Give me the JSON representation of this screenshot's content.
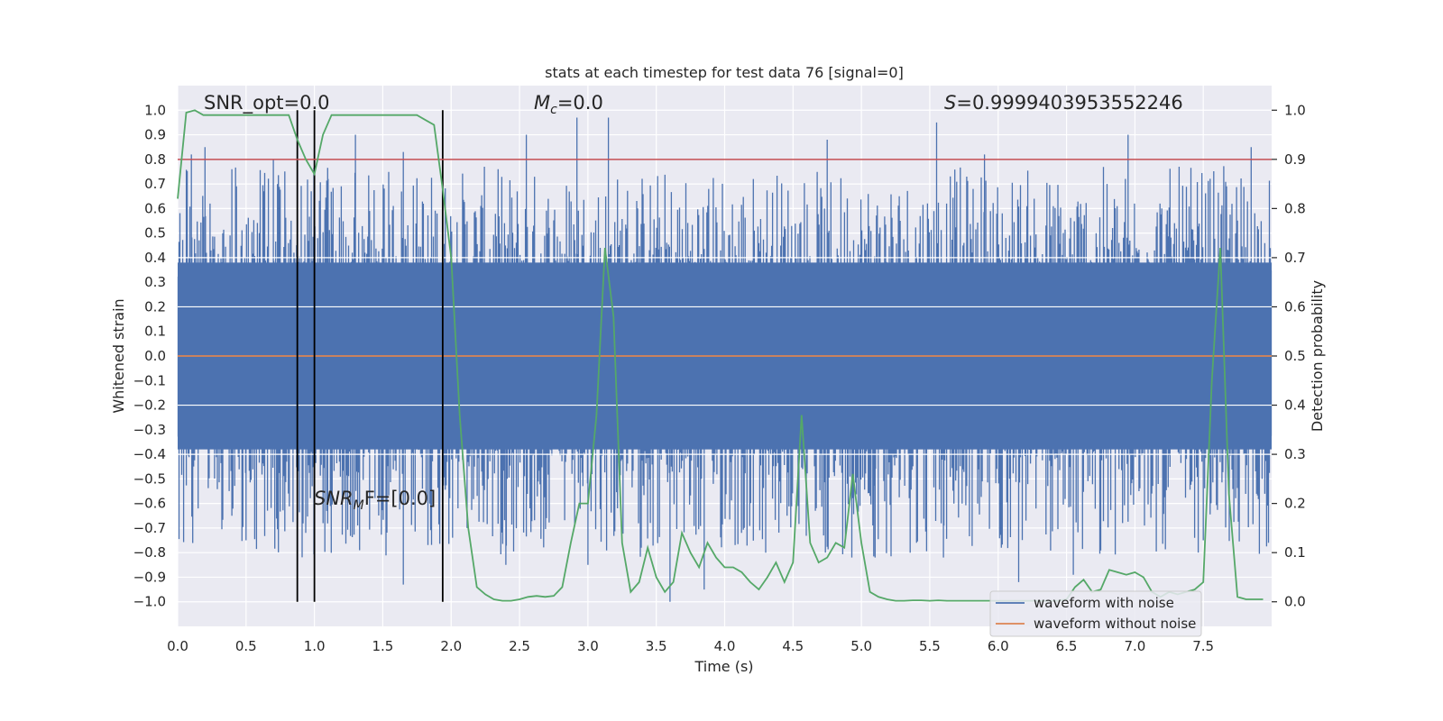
{
  "chart_data": {
    "type": "line",
    "title": "stats at each timestep for test data 76 [signal=0]",
    "xlabel": "Time (s)",
    "ylabel": "Whitened strain",
    "y2label": "Detection probability",
    "xlim": [
      0.0,
      8.0
    ],
    "ylim": [
      -1.1,
      1.1
    ],
    "y2lim": [
      -0.05,
      1.05
    ],
    "xticks": [
      "0.0",
      "0.5",
      "1.0",
      "1.5",
      "2.0",
      "2.5",
      "3.0",
      "3.5",
      "4.0",
      "4.5",
      "5.0",
      "5.5",
      "6.0",
      "6.5",
      "7.0",
      "7.5"
    ],
    "yticks": [
      "1.0",
      "0.9",
      "0.8",
      "0.7",
      "0.6",
      "0.5",
      "0.4",
      "0.3",
      "0.2",
      "0.1",
      "0.0",
      "−0.1",
      "−0.2",
      "−0.3",
      "−0.4",
      "−0.5",
      "−0.6",
      "−0.7",
      "−0.8",
      "−0.9",
      "−1.0"
    ],
    "y2ticks": [
      "1.0",
      "0.9",
      "0.8",
      "0.7",
      "0.6",
      "0.5",
      "0.4",
      "0.3",
      "0.2",
      "0.1",
      "0.0"
    ],
    "grid": true,
    "legend_position": "lower-right",
    "annotations": {
      "snr_opt": "SNR_opt=0.0",
      "mc_symbol": "M",
      "mc_sub": "c",
      "mc_value": "=0.0",
      "s_symbol": "S",
      "s_value": "=0.9999403953552246",
      "snr_mf_symbol": "SNR",
      "snr_mf_sub": "M",
      "snr_mf_value": "F=[0.0]"
    },
    "threshold_line": {
      "y2": 0.9,
      "color": "#c44e52"
    },
    "vertical_lines_x": [
      0.875,
      1.0,
      1.938
    ],
    "series": [
      {
        "name": "waveform with noise",
        "color": "#4c72b0",
        "axis": "left",
        "core_amplitude": 0.38,
        "peak_max_values": [
          0.82,
          0.85,
          0.8,
          0.72,
          0.9,
          0.83,
          0.9,
          0.97,
          0.97,
          0.88,
          0.95,
          0.82,
          0.9,
          0.85
        ],
        "peak_max_x": [
          0.1,
          0.2,
          0.7,
          1.1,
          1.3,
          1.65,
          2.55,
          2.92,
          3.15,
          4.75,
          5.55,
          5.9,
          6.95,
          7.85
        ],
        "peak_min_values": [
          -0.62,
          -0.75,
          -0.82,
          -0.93,
          -0.85,
          -0.85,
          -1.0,
          -0.95,
          -0.8,
          -0.82,
          -0.82,
          -0.92,
          -0.89,
          -0.75
        ],
        "peak_min_x": [
          0.15,
          0.5,
          1.0,
          1.65,
          2.4,
          3.0,
          3.6,
          3.85,
          4.3,
          5.1,
          5.6,
          6.15,
          6.55,
          7.5
        ]
      },
      {
        "name": "waveform without noise",
        "color": "#dd8452",
        "axis": "left",
        "x": [
          0.0,
          8.0
        ],
        "y": [
          0.0,
          0.0
        ]
      },
      {
        "name": "",
        "color": "#55a868",
        "axis": "right",
        "x": [
          0.0,
          0.0625,
          0.125,
          0.1875,
          0.25,
          0.3125,
          0.375,
          0.4375,
          0.5,
          0.5625,
          0.625,
          0.6875,
          0.75,
          0.8125,
          0.875,
          0.9375,
          1.0,
          1.0625,
          1.125,
          1.1875,
          1.25,
          1.3125,
          1.375,
          1.4375,
          1.5,
          1.5625,
          1.625,
          1.6875,
          1.75,
          1.8125,
          1.875,
          1.9375,
          2.0,
          2.0625,
          2.125,
          2.1875,
          2.25,
          2.3125,
          2.375,
          2.4375,
          2.5,
          2.5625,
          2.625,
          2.6875,
          2.75,
          2.8125,
          2.875,
          2.9375,
          3.0,
          3.0625,
          3.125,
          3.1875,
          3.25,
          3.3125,
          3.375,
          3.4375,
          3.5,
          3.5625,
          3.625,
          3.6875,
          3.75,
          3.8125,
          3.875,
          3.9375,
          4.0,
          4.0625,
          4.125,
          4.1875,
          4.25,
          4.3125,
          4.375,
          4.4375,
          4.5,
          4.5625,
          4.625,
          4.6875,
          4.75,
          4.8125,
          4.875,
          4.9375,
          5.0,
          5.0625,
          5.125,
          5.1875,
          5.25,
          5.3125,
          5.375,
          5.4375,
          5.5,
          5.5625,
          5.625,
          5.6875,
          5.75,
          5.8125,
          5.875,
          5.9375,
          6.0,
          6.0625,
          6.125,
          6.1875,
          6.25,
          6.3125,
          6.375,
          6.4375,
          6.5,
          6.5625,
          6.625,
          6.6875,
          6.75,
          6.8125,
          6.875,
          6.9375,
          7.0,
          7.0625,
          7.125,
          7.1875,
          7.25,
          7.3125,
          7.375,
          7.4375,
          7.5,
          7.5625,
          7.625,
          7.6875,
          7.75,
          7.8125,
          7.875,
          7.9375
        ],
        "y": [
          0.82,
          0.995,
          1.0,
          0.99,
          0.99,
          0.99,
          0.99,
          0.99,
          0.99,
          0.99,
          0.99,
          0.99,
          0.99,
          0.99,
          0.94,
          0.9,
          0.87,
          0.95,
          0.99,
          0.99,
          0.99,
          0.99,
          0.99,
          0.99,
          0.99,
          0.99,
          0.99,
          0.99,
          0.99,
          0.98,
          0.97,
          0.84,
          0.7,
          0.38,
          0.15,
          0.03,
          0.015,
          0.005,
          0.002,
          0.002,
          0.005,
          0.01,
          0.012,
          0.01,
          0.012,
          0.03,
          0.12,
          0.2,
          0.2,
          0.38,
          0.72,
          0.58,
          0.12,
          0.02,
          0.04,
          0.11,
          0.05,
          0.02,
          0.04,
          0.14,
          0.1,
          0.07,
          0.12,
          0.09,
          0.07,
          0.07,
          0.06,
          0.04,
          0.025,
          0.05,
          0.08,
          0.04,
          0.08,
          0.38,
          0.12,
          0.08,
          0.09,
          0.12,
          0.11,
          0.26,
          0.12,
          0.02,
          0.01,
          0.005,
          0.002,
          0.002,
          0.003,
          0.003,
          0.002,
          0.003,
          0.002,
          0.002,
          0.002,
          0.002,
          0.002,
          0.002,
          0.002,
          0.002,
          0.002,
          0.002,
          0.002,
          0.002,
          0.002,
          0.002,
          0.005,
          0.03,
          0.045,
          0.02,
          0.025,
          0.065,
          0.06,
          0.055,
          0.06,
          0.05,
          0.02,
          0.01,
          0.02,
          0.015,
          0.02,
          0.025,
          0.04,
          0.45,
          0.72,
          0.22,
          0.01,
          0.005,
          0.005,
          0.005
        ]
      }
    ]
  }
}
